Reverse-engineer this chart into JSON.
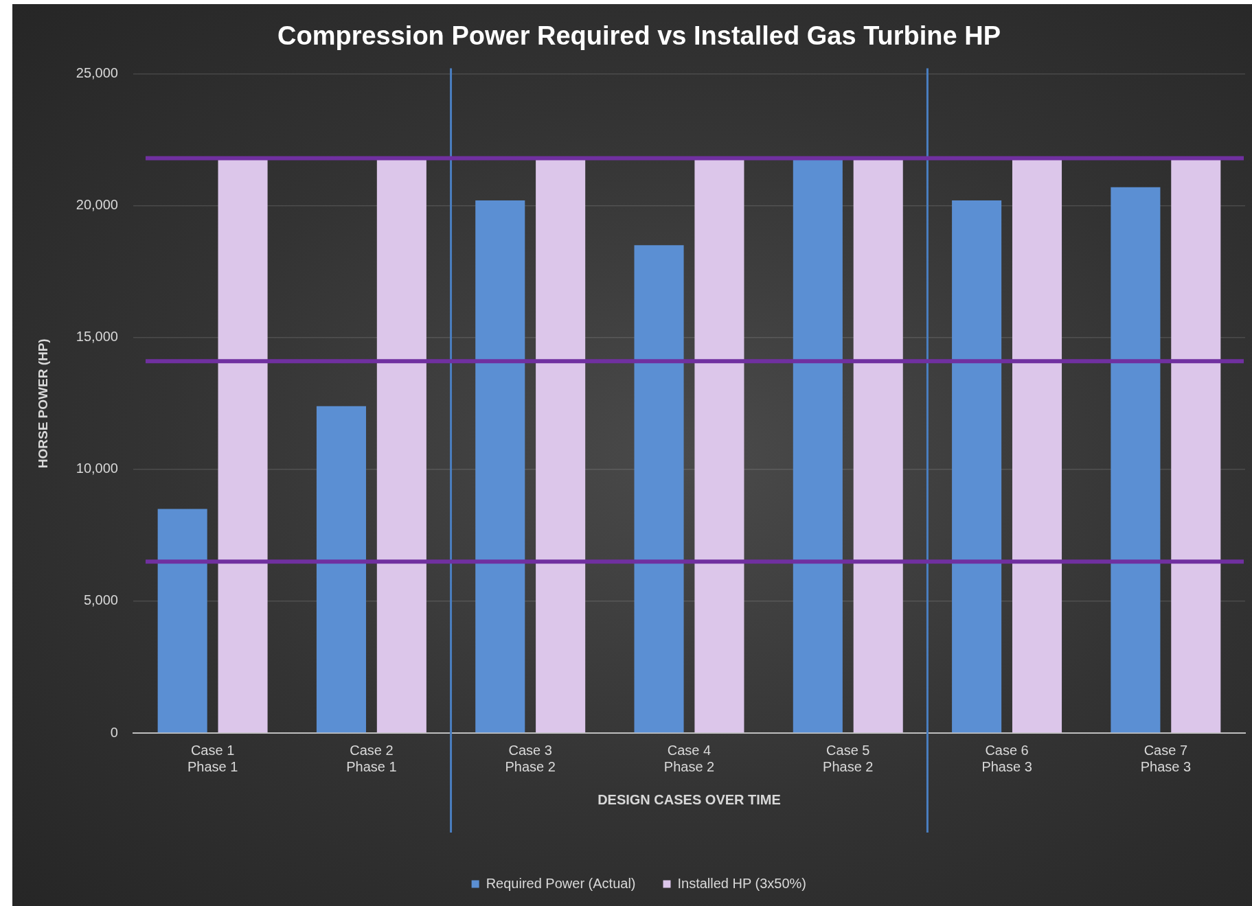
{
  "chart_data": {
    "type": "bar",
    "title": "Compression Power Required vs Installed Gas Turbine HP",
    "xlabel": "DESIGN CASES OVER TIME",
    "ylabel": "HORSE POWER (HP)",
    "categories": [
      "Case 1\nPhase 1",
      "Case 2\nPhase 1",
      "Case 3\nPhase 2",
      "Case 4\nPhase 2",
      "Case 5\nPhase 2",
      "Case 6\nPhase 3",
      "Case 7\nPhase 3"
    ],
    "series": [
      {
        "name": "Required Power (Actual)",
        "color": "#5b8fd3",
        "values": [
          8500,
          12400,
          20200,
          18500,
          21800,
          20200,
          20700
        ]
      },
      {
        "name": "Installed HP (3x50%)",
        "color": "#dcc6ea",
        "values": [
          21800,
          21800,
          21800,
          21800,
          21800,
          21800,
          21800
        ]
      }
    ],
    "ylim": [
      0,
      25000
    ],
    "yticks": [
      {
        "value": 0,
        "label": "0"
      },
      {
        "value": 5000,
        "label": "5,000"
      },
      {
        "value": 10000,
        "label": "10,000"
      },
      {
        "value": 15000,
        "label": "15,000"
      },
      {
        "value": 20000,
        "label": "20,000"
      },
      {
        "value": 25000,
        "label": "25,000"
      }
    ],
    "ref_lines": [
      {
        "axis": "y",
        "value": 6500,
        "color": "#7030a0"
      },
      {
        "axis": "y",
        "value": 14100,
        "color": "#7030a0"
      },
      {
        "axis": "y",
        "value": 21800,
        "color": "#7030a0"
      }
    ],
    "grid": "y",
    "legend": "bottom"
  }
}
